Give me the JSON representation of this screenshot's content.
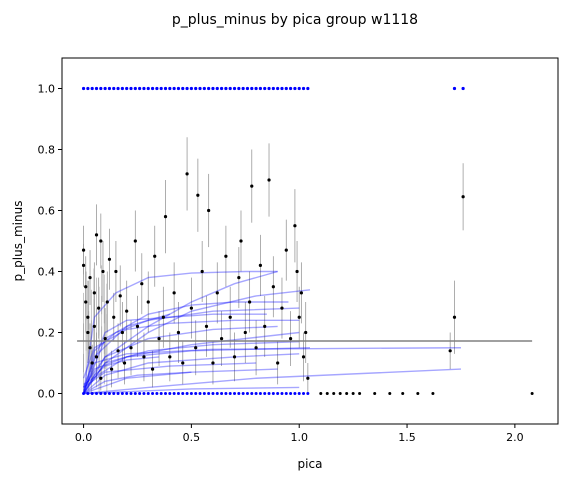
{
  "chart_data": {
    "type": "scatter",
    "title": "p_plus_minus by pica group w1118",
    "xlabel": "pica",
    "ylabel": "p_plus_minus",
    "xlim": [
      -0.1,
      2.2
    ],
    "ylim": [
      -0.1,
      1.1
    ],
    "xticks": [
      0.0,
      0.5,
      1.0,
      1.5,
      2.0
    ],
    "xtick_labels": [
      "0.0",
      "0.5",
      "1.0",
      "1.5",
      "2.0"
    ],
    "yticks": [
      0.0,
      0.2,
      0.4,
      0.6,
      0.8,
      1.0
    ],
    "ytick_labels": [
      "0.0",
      "0.2",
      "0.4",
      "0.6",
      "0.8",
      "1.0"
    ],
    "grid": false,
    "legend": "none",
    "colors": {
      "points": "#000000",
      "error_bars": "#999999",
      "group_points": "#0000ff",
      "fit_lines": "#0000ff",
      "overall_fit": "#808080"
    },
    "overall_fit": {
      "x": [
        -0.03,
        2.08
      ],
      "y": [
        0.172,
        0.172
      ]
    },
    "fits": [
      {
        "x": [
          0.0,
          0.05,
          0.15,
          0.3,
          0.5,
          0.75,
          0.9
        ],
        "y": [
          0.0,
          0.25,
          0.33,
          0.38,
          0.395,
          0.4,
          0.4
        ]
      },
      {
        "x": [
          0.0,
          0.1,
          0.3,
          0.5,
          0.8,
          1.05
        ],
        "y": [
          0.0,
          0.1,
          0.2,
          0.27,
          0.32,
          0.34
        ]
      },
      {
        "x": [
          0.0,
          0.1,
          0.3,
          0.5,
          0.7,
          0.95
        ],
        "y": [
          0.0,
          0.18,
          0.26,
          0.29,
          0.3,
          0.3
        ]
      },
      {
        "x": [
          0.0,
          0.1,
          0.2,
          0.4,
          0.6,
          0.85
        ],
        "y": [
          0.02,
          0.2,
          0.24,
          0.25,
          0.26,
          0.26
        ]
      },
      {
        "x": [
          0.0,
          0.05,
          0.2,
          0.4,
          0.7,
          1.0
        ],
        "y": [
          0.05,
          0.15,
          0.21,
          0.23,
          0.24,
          0.24
        ]
      },
      {
        "x": [
          0.0,
          0.1,
          0.3,
          0.6,
          0.9
        ],
        "y": [
          0.0,
          0.12,
          0.18,
          0.21,
          0.22
        ]
      },
      {
        "x": [
          0.0,
          0.2,
          0.5,
          1.0
        ],
        "y": [
          0.03,
          0.12,
          0.16,
          0.2
        ]
      },
      {
        "x": [
          0.0,
          0.1,
          0.3,
          0.6,
          1.0
        ],
        "y": [
          0.0,
          0.1,
          0.14,
          0.16,
          0.17
        ]
      },
      {
        "x": [
          0.0,
          0.05,
          0.2,
          0.5,
          1.05
        ],
        "y": [
          0.01,
          0.08,
          0.12,
          0.14,
          0.15
        ]
      },
      {
        "x": [
          0.0,
          0.1,
          0.3,
          0.7,
          1.0
        ],
        "y": [
          0.0,
          0.06,
          0.1,
          0.12,
          0.13
        ]
      },
      {
        "x": [
          0.0,
          0.1,
          0.4,
          0.8
        ],
        "y": [
          0.02,
          0.07,
          0.09,
          0.1
        ]
      },
      {
        "x": [
          0.0,
          0.2,
          0.5,
          0.9
        ],
        "y": [
          0.0,
          0.05,
          0.07,
          0.08
        ]
      },
      {
        "x": [
          0.0,
          0.05,
          0.2,
          0.4
        ],
        "y": [
          0.0,
          0.12,
          0.22,
          0.26
        ]
      },
      {
        "x": [
          0.0,
          0.5,
          1.0
        ],
        "y": [
          0.0,
          0.015,
          0.02
        ]
      },
      {
        "x": [
          0.0,
          0.05,
          0.1,
          0.2,
          0.35
        ],
        "y": [
          0.0,
          0.06,
          0.09,
          0.11,
          0.12
        ]
      },
      {
        "x": [
          0.0,
          0.1,
          0.25,
          0.5
        ],
        "y": [
          0.0,
          0.04,
          0.06,
          0.07
        ]
      },
      {
        "x": [
          0.0,
          0.3,
          0.8,
          1.75
        ],
        "y": [
          0.0,
          0.02,
          0.05,
          0.08
        ]
      },
      {
        "x": [
          0.0,
          0.05,
          0.2,
          0.6,
          1.75
        ],
        "y": [
          0.0,
          0.1,
          0.13,
          0.145,
          0.15
        ]
      },
      {
        "x": [
          0.0,
          0.1,
          0.3,
          0.5,
          0.7,
          0.9
        ],
        "y": [
          0.02,
          0.12,
          0.22,
          0.3,
          0.36,
          0.4
        ]
      },
      {
        "x": [
          0.0,
          0.05,
          0.15,
          0.3,
          0.6,
          1.0
        ],
        "y": [
          0.0,
          0.14,
          0.2,
          0.24,
          0.27,
          0.28
        ]
      }
    ],
    "points_top": [
      [
        0.0,
        1.0
      ],
      [
        0.02,
        1.0
      ],
      [
        0.04,
        1.0
      ],
      [
        0.06,
        1.0
      ],
      [
        0.08,
        1.0
      ],
      [
        0.1,
        1.0
      ],
      [
        0.12,
        1.0
      ],
      [
        0.14,
        1.0
      ],
      [
        0.16,
        1.0
      ],
      [
        0.18,
        1.0
      ],
      [
        0.2,
        1.0
      ],
      [
        0.22,
        1.0
      ],
      [
        0.24,
        1.0
      ],
      [
        0.26,
        1.0
      ],
      [
        0.28,
        1.0
      ],
      [
        0.3,
        1.0
      ],
      [
        0.32,
        1.0
      ],
      [
        0.34,
        1.0
      ],
      [
        0.36,
        1.0
      ],
      [
        0.38,
        1.0
      ],
      [
        0.4,
        1.0
      ],
      [
        0.42,
        1.0
      ],
      [
        0.44,
        1.0
      ],
      [
        0.46,
        1.0
      ],
      [
        0.48,
        1.0
      ],
      [
        0.5,
        1.0
      ],
      [
        0.52,
        1.0
      ],
      [
        0.54,
        1.0
      ],
      [
        0.56,
        1.0
      ],
      [
        0.58,
        1.0
      ],
      [
        0.6,
        1.0
      ],
      [
        0.62,
        1.0
      ],
      [
        0.64,
        1.0
      ],
      [
        0.66,
        1.0
      ],
      [
        0.68,
        1.0
      ],
      [
        0.7,
        1.0
      ],
      [
        0.72,
        1.0
      ],
      [
        0.74,
        1.0
      ],
      [
        0.76,
        1.0
      ],
      [
        0.78,
        1.0
      ],
      [
        0.8,
        1.0
      ],
      [
        0.82,
        1.0
      ],
      [
        0.84,
        1.0
      ],
      [
        0.86,
        1.0
      ],
      [
        0.88,
        1.0
      ],
      [
        0.9,
        1.0
      ],
      [
        0.92,
        1.0
      ],
      [
        0.94,
        1.0
      ],
      [
        0.96,
        1.0
      ],
      [
        0.98,
        1.0
      ],
      [
        1.0,
        1.0
      ],
      [
        1.02,
        1.0
      ],
      [
        1.04,
        1.0
      ],
      [
        1.72,
        1.0
      ],
      [
        1.76,
        1.0
      ]
    ],
    "points_bottom": [
      [
        0.0,
        0.0
      ],
      [
        0.02,
        0.0
      ],
      [
        0.04,
        0.0
      ],
      [
        0.06,
        0.0
      ],
      [
        0.08,
        0.0
      ],
      [
        0.1,
        0.0
      ],
      [
        0.12,
        0.0
      ],
      [
        0.14,
        0.0
      ],
      [
        0.16,
        0.0
      ],
      [
        0.18,
        0.0
      ],
      [
        0.2,
        0.0
      ],
      [
        0.22,
        0.0
      ],
      [
        0.24,
        0.0
      ],
      [
        0.26,
        0.0
      ],
      [
        0.28,
        0.0
      ],
      [
        0.3,
        0.0
      ],
      [
        0.32,
        0.0
      ],
      [
        0.34,
        0.0
      ],
      [
        0.36,
        0.0
      ],
      [
        0.38,
        0.0
      ],
      [
        0.4,
        0.0
      ],
      [
        0.42,
        0.0
      ],
      [
        0.44,
        0.0
      ],
      [
        0.46,
        0.0
      ],
      [
        0.48,
        0.0
      ],
      [
        0.5,
        0.0
      ],
      [
        0.52,
        0.0
      ],
      [
        0.54,
        0.0
      ],
      [
        0.56,
        0.0
      ],
      [
        0.58,
        0.0
      ],
      [
        0.6,
        0.0
      ],
      [
        0.62,
        0.0
      ],
      [
        0.64,
        0.0
      ],
      [
        0.66,
        0.0
      ],
      [
        0.68,
        0.0
      ],
      [
        0.7,
        0.0
      ],
      [
        0.72,
        0.0
      ],
      [
        0.74,
        0.0
      ],
      [
        0.76,
        0.0
      ],
      [
        0.78,
        0.0
      ],
      [
        0.8,
        0.0
      ],
      [
        0.82,
        0.0
      ],
      [
        0.84,
        0.0
      ],
      [
        0.86,
        0.0
      ],
      [
        0.88,
        0.0
      ],
      [
        0.9,
        0.0
      ],
      [
        0.92,
        0.0
      ],
      [
        0.94,
        0.0
      ],
      [
        0.96,
        0.0
      ],
      [
        0.98,
        0.0
      ],
      [
        1.0,
        0.0
      ],
      [
        1.02,
        0.0
      ],
      [
        1.04,
        0.0
      ],
      [
        1.1,
        0.0
      ],
      [
        1.13,
        0.0
      ],
      [
        1.16,
        0.0
      ],
      [
        1.19,
        0.0
      ],
      [
        1.22,
        0.0
      ],
      [
        1.25,
        0.0
      ],
      [
        1.28,
        0.0
      ],
      [
        1.35,
        0.0
      ],
      [
        1.42,
        0.0
      ],
      [
        1.48,
        0.0
      ],
      [
        1.55,
        0.0
      ],
      [
        1.62,
        0.0
      ],
      [
        2.08,
        0.0
      ]
    ],
    "points_with_error": [
      [
        0.0,
        0.47,
        0.08
      ],
      [
        0.0,
        0.42,
        0.07
      ],
      [
        0.01,
        0.35,
        0.1
      ],
      [
        0.01,
        0.3,
        0.1
      ],
      [
        0.02,
        0.25,
        0.12
      ],
      [
        0.02,
        0.2,
        0.1
      ],
      [
        0.03,
        0.15,
        0.08
      ],
      [
        0.03,
        0.38,
        0.09
      ],
      [
        0.04,
        0.1,
        0.06
      ],
      [
        0.05,
        0.33,
        0.1
      ],
      [
        0.05,
        0.22,
        0.1
      ],
      [
        0.06,
        0.52,
        0.1
      ],
      [
        0.06,
        0.12,
        0.08
      ],
      [
        0.07,
        0.28,
        0.1
      ],
      [
        0.08,
        0.05,
        0.04
      ],
      [
        0.08,
        0.5,
        0.09
      ],
      [
        0.09,
        0.4,
        0.1
      ],
      [
        0.1,
        0.18,
        0.1
      ],
      [
        0.11,
        0.3,
        0.1
      ],
      [
        0.12,
        0.44,
        0.1
      ],
      [
        0.13,
        0.08,
        0.06
      ],
      [
        0.14,
        0.25,
        0.08
      ],
      [
        0.15,
        0.4,
        0.1
      ],
      [
        0.16,
        0.14,
        0.09
      ],
      [
        0.17,
        0.32,
        0.1
      ],
      [
        0.18,
        0.2,
        0.1
      ],
      [
        0.19,
        0.1,
        0.07
      ],
      [
        0.2,
        0.27,
        0.1
      ],
      [
        0.22,
        0.15,
        0.09
      ],
      [
        0.24,
        0.5,
        0.1
      ],
      [
        0.25,
        0.22,
        0.1
      ],
      [
        0.27,
        0.36,
        0.1
      ],
      [
        0.28,
        0.12,
        0.08
      ],
      [
        0.3,
        0.3,
        0.1
      ],
      [
        0.32,
        0.08,
        0.06
      ],
      [
        0.33,
        0.45,
        0.1
      ],
      [
        0.35,
        0.18,
        0.09
      ],
      [
        0.37,
        0.25,
        0.1
      ],
      [
        0.38,
        0.58,
        0.12
      ],
      [
        0.4,
        0.12,
        0.08
      ],
      [
        0.42,
        0.33,
        0.1
      ],
      [
        0.44,
        0.2,
        0.1
      ],
      [
        0.46,
        0.1,
        0.07
      ],
      [
        0.48,
        0.72,
        0.12
      ],
      [
        0.5,
        0.28,
        0.1
      ],
      [
        0.52,
        0.15,
        0.09
      ],
      [
        0.53,
        0.65,
        0.12
      ],
      [
        0.55,
        0.4,
        0.1
      ],
      [
        0.57,
        0.22,
        0.1
      ],
      [
        0.58,
        0.6,
        0.12
      ],
      [
        0.6,
        0.1,
        0.07
      ],
      [
        0.62,
        0.33,
        0.1
      ],
      [
        0.64,
        0.18,
        0.09
      ],
      [
        0.66,
        0.45,
        0.1
      ],
      [
        0.68,
        0.25,
        0.1
      ],
      [
        0.7,
        0.12,
        0.08
      ],
      [
        0.72,
        0.38,
        0.1
      ],
      [
        0.73,
        0.5,
        0.1
      ],
      [
        0.75,
        0.2,
        0.1
      ],
      [
        0.77,
        0.3,
        0.1
      ],
      [
        0.78,
        0.68,
        0.12
      ],
      [
        0.8,
        0.15,
        0.09
      ],
      [
        0.82,
        0.42,
        0.1
      ],
      [
        0.84,
        0.22,
        0.1
      ],
      [
        0.86,
        0.7,
        0.12
      ],
      [
        0.88,
        0.35,
        0.1
      ],
      [
        0.9,
        0.1,
        0.07
      ],
      [
        0.92,
        0.28,
        0.1
      ],
      [
        0.94,
        0.47,
        0.1
      ],
      [
        0.96,
        0.18,
        0.09
      ],
      [
        0.98,
        0.55,
        0.12
      ],
      [
        0.99,
        0.4,
        0.1
      ],
      [
        1.0,
        0.25,
        0.1
      ],
      [
        1.01,
        0.33,
        0.1
      ],
      [
        1.02,
        0.12,
        0.08
      ],
      [
        1.03,
        0.2,
        0.1
      ],
      [
        1.04,
        0.05,
        0.05
      ],
      [
        1.7,
        0.14,
        0.06
      ],
      [
        1.72,
        0.25,
        0.12
      ],
      [
        1.76,
        0.645,
        0.11
      ]
    ]
  }
}
